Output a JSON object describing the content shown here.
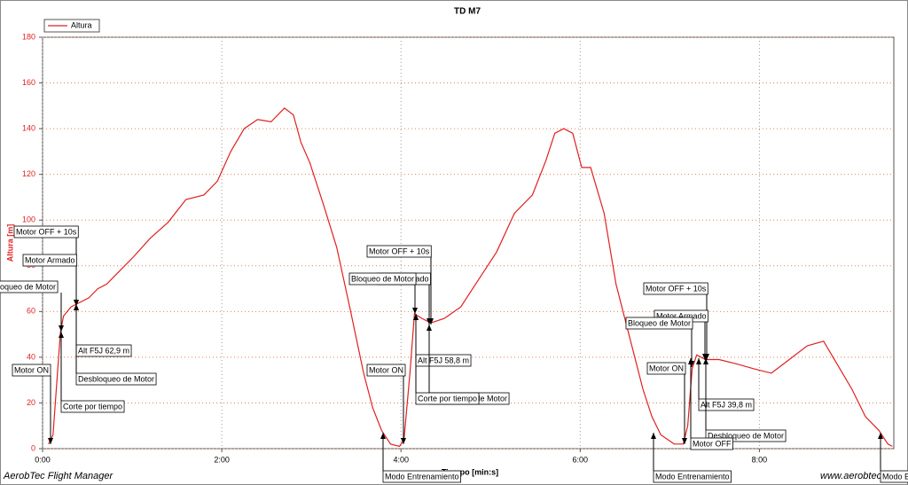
{
  "chart_data": {
    "type": "line",
    "title": "TD M7",
    "x_label": "Tiempo [min:s]",
    "y_label": "Altura [m]",
    "footer_left": "AerobTec Flight Manager",
    "footer_right": "www.aerobtec.com",
    "xlim": [
      0,
      570
    ],
    "ylim": [
      0,
      180
    ],
    "xticks": [
      {
        "value": 0,
        "label": "0:00"
      },
      {
        "value": 120,
        "label": "2:00"
      },
      {
        "value": 240,
        "label": "4:00"
      },
      {
        "value": 360,
        "label": "6:00"
      },
      {
        "value": 480,
        "label": "8:00"
      }
    ],
    "yticks": [
      0,
      20,
      40,
      60,
      80,
      100,
      120,
      140,
      160,
      180
    ],
    "grid": true,
    "legend": "top-left",
    "x": [
      4,
      7,
      10,
      12,
      14,
      19,
      25,
      31,
      37,
      43,
      49,
      61,
      72,
      84,
      96,
      108,
      117,
      126,
      135,
      144,
      153,
      162,
      168,
      173,
      179,
      188,
      197,
      206,
      215,
      221,
      227,
      233,
      239,
      242,
      246,
      249,
      254,
      260,
      269,
      280,
      292,
      304,
      316,
      328,
      337,
      343,
      349,
      355,
      361,
      367,
      376,
      384,
      393,
      402,
      408,
      414,
      423,
      429,
      432,
      435,
      438,
      444,
      453,
      465,
      476,
      488,
      500,
      512,
      523,
      532,
      542,
      551,
      560,
      566,
      569
    ],
    "series": [
      {
        "name": "Altura",
        "color": "#e02020",
        "values": [
          2,
          6,
          33,
          51,
          58,
          62,
          64,
          66,
          70,
          72,
          76,
          84,
          92,
          99,
          109,
          111,
          117,
          130,
          140,
          144,
          143,
          149,
          146,
          134,
          125,
          107,
          88,
          61,
          33,
          18,
          8,
          2,
          1,
          4,
          33,
          59,
          57,
          55,
          57,
          62,
          74,
          86,
          103,
          111,
          126,
          138,
          140,
          138,
          123,
          123,
          103,
          72,
          49,
          26,
          14,
          6,
          2,
          2,
          10,
          35,
          41,
          39,
          39,
          37,
          35,
          33,
          39,
          45,
          47,
          37,
          26,
          14,
          8,
          2,
          1
        ]
      }
    ],
    "annotations": [
      "Motor OFF + 10s",
      "Motor Armado",
      "Bloqueo de Motor",
      "Motor ON",
      "Alt F5J  62,9 m",
      "Desbloqueo de Motor",
      "Corte por tiempo",
      "Motor OFF + 10s",
      "Motor Armado",
      "Bloqueo de Motor",
      "Motor ON",
      "Alt F5J  58,8 m",
      "Desbloqueo de Motor",
      "Corte por tiempo",
      "Modo Entrenamiento",
      "Motor OFF + 10s",
      "Motor Armado",
      "Bloqueo de Motor",
      "Motor ON",
      "Alt F5J  39,8 m",
      "Desbloqueo de Motor",
      "Motor OFF",
      "Modo Entrenamiento",
      "Modo Entrenamiento"
    ]
  }
}
